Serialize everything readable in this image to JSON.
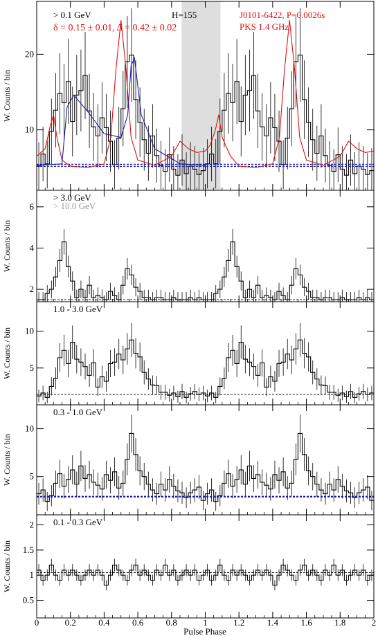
{
  "chart_data": {
    "type": "line",
    "xlabel": "Pulse Phase",
    "ylabel": "W. Counts / bin",
    "xlim": [
      0,
      2
    ],
    "x_ticks": [
      "0",
      "0.2",
      "0.4",
      "0.6",
      "0.8",
      "1",
      "1.2",
      "1.4",
      "1.6",
      "1.8",
      "2"
    ],
    "panels": [
      {
        "id": "p1",
        "labels": [
          "> 0.1 GeV",
          "δ = 0.15 ± 0.01, Δ = 0.42 ± 0.02"
        ],
        "h_label": "H=155",
        "pulsar_labels": [
          "J0101-6422, P=0.0026s",
          "PKS 1.4 GHz"
        ],
        "ylim": [
          2,
          27
        ],
        "y_ticks": [
          "10",
          "20"
        ],
        "background_level": 5.3,
        "shaded_band": [
          0.86,
          1.09
        ],
        "histogram": [
          5.2,
          6.8,
          5.5,
          9.8,
          12.6,
          14.8,
          13.6,
          16.4,
          11.1,
          14.6,
          15.2,
          17.2,
          12.5,
          10.4,
          9.2,
          11.6,
          10.3,
          8.5,
          5.4,
          8.9,
          12.8,
          19.0,
          19.9,
          14.0,
          11.0,
          8.7,
          6.9,
          9.2,
          6.6,
          5.3,
          4.5,
          6.7,
          4.8,
          4.0,
          6.0,
          4.2,
          5.2,
          4.8,
          4.1,
          4.6,
          5.5,
          6.8,
          5.5,
          9.8,
          12.6,
          14.8,
          13.6,
          16.4,
          11.1,
          14.6,
          15.2,
          17.2,
          12.5,
          10.4,
          9.2,
          11.6,
          10.3,
          8.5,
          5.4,
          8.9,
          12.8,
          19.0,
          19.9,
          14.0,
          11.0,
          8.7,
          6.9,
          9.2,
          6.6,
          5.3,
          4.5,
          6.7,
          4.8,
          4.0,
          6.0,
          4.2,
          5.2,
          4.8,
          4.1,
          4.6
        ],
        "radio_profile": [
          [
            0,
            6.5
          ],
          [
            0.05,
            7.5
          ],
          [
            0.08,
            10.5
          ],
          [
            0.1,
            12
          ],
          [
            0.12,
            9
          ],
          [
            0.15,
            6
          ],
          [
            0.2,
            5.2
          ],
          [
            0.3,
            5.0
          ],
          [
            0.4,
            5.5
          ],
          [
            0.44,
            9
          ],
          [
            0.47,
            18
          ],
          [
            0.5,
            24.5
          ],
          [
            0.53,
            18
          ],
          [
            0.56,
            9
          ],
          [
            0.6,
            6
          ],
          [
            0.7,
            5.3
          ],
          [
            0.8,
            6.5
          ],
          [
            0.85,
            8.5
          ],
          [
            0.9,
            7.5
          ],
          [
            0.95,
            7
          ],
          [
            1.0,
            7.2
          ],
          [
            1.03,
            8
          ],
          [
            1.06,
            10
          ],
          [
            1.08,
            12
          ],
          [
            1.1,
            9
          ],
          [
            1.15,
            6.5
          ],
          [
            1.2,
            5.2
          ],
          [
            1.3,
            5.0
          ],
          [
            1.4,
            5.5
          ],
          [
            1.44,
            9
          ],
          [
            1.47,
            18
          ],
          [
            1.5,
            24.5
          ],
          [
            1.53,
            18
          ],
          [
            1.56,
            9
          ],
          [
            1.6,
            6
          ],
          [
            1.7,
            5.3
          ],
          [
            1.8,
            6.5
          ],
          [
            1.85,
            8.5
          ],
          [
            1.9,
            7.5
          ],
          [
            1.95,
            7
          ],
          [
            2.0,
            7.2
          ]
        ],
        "fit_profile": [
          [
            0.0,
            5.3
          ],
          [
            0.15,
            5.5
          ],
          [
            0.18,
            13
          ],
          [
            0.22,
            14.6
          ],
          [
            0.3,
            12.5
          ],
          [
            0.4,
            9.5
          ],
          [
            0.5,
            9
          ],
          [
            0.54,
            12
          ],
          [
            0.56,
            18.5
          ],
          [
            0.58,
            19.5
          ],
          [
            0.62,
            12
          ],
          [
            0.7,
            7.5
          ],
          [
            0.8,
            6.2
          ],
          [
            0.85,
            5.5
          ],
          [
            1.0,
            5.3
          ]
        ]
      },
      {
        "id": "p2",
        "labels": [
          "> 3.0 GeV",
          "> 10.0 GeV"
        ],
        "ylim": [
          1.4,
          6.8
        ],
        "y_ticks": [
          "2",
          "4",
          "6"
        ],
        "background_level": 1.5,
        "histogram": [
          1.5,
          1.5,
          1.8,
          2.0,
          2.6,
          3.4,
          4.3,
          3.1,
          2.4,
          1.6,
          2.0,
          1.6,
          2.2,
          1.6,
          1.7,
          1.6,
          1.5,
          1.9,
          1.7,
          1.5,
          2.2,
          3.0,
          2.7,
          2.1,
          1.9,
          1.6,
          1.6,
          1.5,
          1.6,
          1.6,
          1.5,
          1.5,
          1.6,
          1.5,
          1.5,
          1.5,
          1.6,
          1.5,
          1.6,
          1.5,
          1.5,
          1.5,
          1.8,
          2.0,
          2.6,
          3.4,
          4.3,
          3.1,
          2.4,
          1.6,
          2.0,
          1.6,
          2.2,
          1.6,
          1.7,
          1.6,
          1.5,
          1.9,
          1.7,
          1.5,
          2.2,
          3.0,
          2.7,
          2.1,
          1.9,
          1.6,
          1.6,
          1.5,
          1.6,
          1.6,
          1.5,
          1.5,
          1.6,
          1.5,
          1.5,
          1.5,
          1.6,
          1.5,
          1.6,
          1.5
        ]
      },
      {
        "id": "p3",
        "labels": [
          "1.0 - 3.0 GeV"
        ],
        "ylim": [
          0,
          14
        ],
        "y_ticks": [
          "5",
          "10"
        ],
        "background_level": 1.4,
        "histogram": [
          1.2,
          1.6,
          1.0,
          2.5,
          3.6,
          6.4,
          7.4,
          5.6,
          8.5,
          6.2,
          5.8,
          5.2,
          4.0,
          5.7,
          2.4,
          3.8,
          3.2,
          5.6,
          5.8,
          6.9,
          6.1,
          7.6,
          8.8,
          7.0,
          6.5,
          4.4,
          3.5,
          2.7,
          2.6,
          1.7,
          1.7,
          1.3,
          1.6,
          1.1,
          1.8,
          1.0,
          1.5,
          1.8,
          1.4,
          1.6,
          1.2,
          1.6,
          1.0,
          2.5,
          3.6,
          6.4,
          7.4,
          5.6,
          8.5,
          6.2,
          5.8,
          5.2,
          4.0,
          5.7,
          2.4,
          3.8,
          3.2,
          5.6,
          5.8,
          6.9,
          6.1,
          7.6,
          8.8,
          7.0,
          6.5,
          4.4,
          3.5,
          2.7,
          2.6,
          1.7,
          1.7,
          1.3,
          1.6,
          1.1,
          1.8,
          1.0,
          1.5,
          1.8,
          1.4,
          1.6
        ]
      },
      {
        "id": "p4",
        "labels": [
          "0.3 - 1.0 GeV"
        ],
        "ylim": [
          1,
          12.5
        ],
        "y_ticks": [
          "5",
          "10"
        ],
        "background_level": 2.9,
        "histogram": [
          3.2,
          3.6,
          2.4,
          3.0,
          4.3,
          5.3,
          4.0,
          4.7,
          5.7,
          4.2,
          6.1,
          4.8,
          5.2,
          4.4,
          4.1,
          3.7,
          5.2,
          4.6,
          5.5,
          3.8,
          4.3,
          6.8,
          9.5,
          7.3,
          5.6,
          5.0,
          4.2,
          3.6,
          3.2,
          4.2,
          3.6,
          4.7,
          4.0,
          3.5,
          3.3,
          2.8,
          3.3,
          3.6,
          3.9,
          2.5,
          3.2,
          3.6,
          2.4,
          3.0,
          4.3,
          5.3,
          4.0,
          4.7,
          5.7,
          4.2,
          6.1,
          4.8,
          5.2,
          4.4,
          4.1,
          3.7,
          5.2,
          4.6,
          5.5,
          3.8,
          4.3,
          6.8,
          9.5,
          7.3,
          5.6,
          5.0,
          4.2,
          3.6,
          3.2,
          4.2,
          3.6,
          4.7,
          4.0,
          3.5,
          3.3,
          2.8,
          3.3,
          3.6,
          3.9,
          2.5
        ]
      },
      {
        "id": "p5",
        "labels": [
          "0.1 - 0.3 GeV"
        ],
        "ylim": [
          0.15,
          2.2
        ],
        "y_ticks": [
          "0.5",
          "1",
          "1.5",
          "2"
        ],
        "background_level": 1.05,
        "histogram": [
          1.1,
          0.9,
          1.0,
          1.2,
          1.0,
          0.9,
          1.1,
          1.0,
          1.1,
          1.0,
          0.9,
          1.0,
          1.1,
          1.0,
          1.1,
          1.0,
          0.8,
          1.0,
          1.2,
          1.1,
          1.0,
          0.9,
          1.1,
          1.2,
          1.0,
          1.1,
          1.0,
          0.9,
          1.1,
          1.0,
          1.2,
          1.0,
          1.1,
          0.9,
          1.0,
          1.1,
          1.0,
          1.1,
          0.9,
          1.0,
          1.1,
          0.9,
          1.0,
          1.2,
          1.0,
          0.9,
          1.1,
          1.0,
          1.1,
          1.0,
          0.9,
          1.0,
          1.1,
          1.0,
          1.1,
          1.0,
          0.8,
          1.0,
          1.2,
          1.1,
          1.0,
          0.9,
          1.1,
          1.2,
          1.0,
          1.1,
          1.0,
          0.9,
          1.1,
          1.0,
          1.2,
          1.0,
          1.1,
          0.9,
          1.0,
          1.1,
          1.0,
          1.1,
          0.9,
          1.0
        ]
      }
    ]
  }
}
